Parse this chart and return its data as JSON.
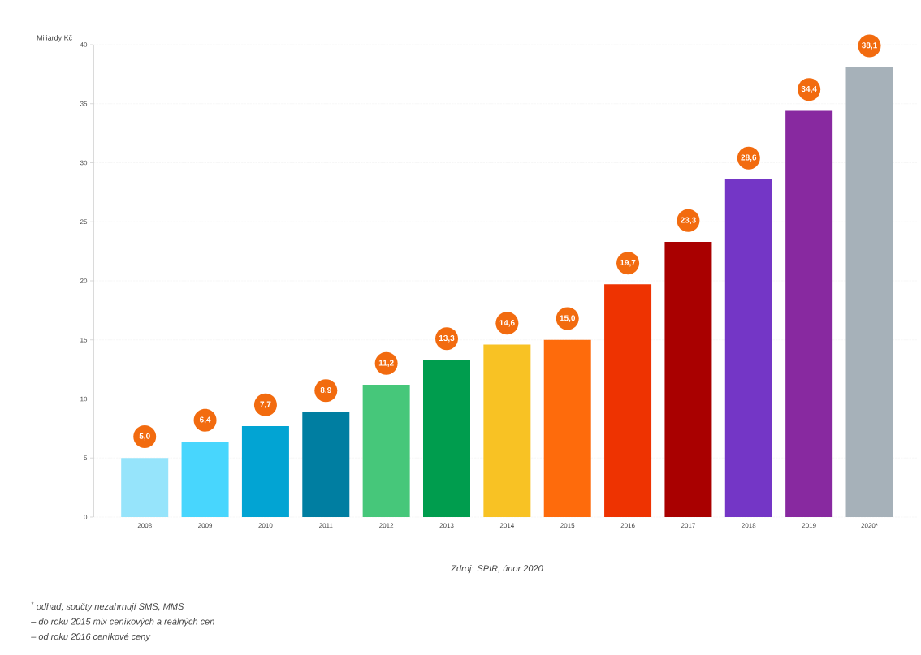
{
  "chart_data": {
    "type": "bar",
    "ylabel": "Miliardy Kč",
    "categories": [
      "2008",
      "2009",
      "2010",
      "2011",
      "2012",
      "2013",
      "2014",
      "2015",
      "2016",
      "2017",
      "2018",
      "2019",
      "2020*"
    ],
    "values": [
      5.0,
      6.4,
      7.7,
      8.9,
      11.2,
      13.3,
      14.6,
      15.0,
      19.7,
      23.3,
      28.6,
      34.4,
      38.1
    ],
    "value_labels": [
      "5,0",
      "6,4",
      "7,7",
      "8,9",
      "11,2",
      "13,3",
      "14,6",
      "15,0",
      "19,7",
      "23,3",
      "28,6",
      "34,4",
      "38,1"
    ],
    "colors": [
      "#96e4fb",
      "#48d6fd",
      "#02a4d3",
      "#007ea1",
      "#46c77a",
      "#009d4e",
      "#f8c224",
      "#fe6b0c",
      "#ee3301",
      "#a90000",
      "#7436c6",
      "#8829a0",
      "#a6b1b9"
    ],
    "ylim": [
      0,
      40
    ],
    "yticks": [
      0,
      5,
      10,
      15,
      20,
      25,
      30,
      35,
      40
    ],
    "grid": "y",
    "annotations": [
      "Zdroj: SPIR, únor 2020",
      "$^{*}$ odhad; součty nezahrnují SMS, MMS",
      "– do roku 2015 mix ceníkových a reálných cen",
      "– od roku 2016 ceníkové ceny"
    ]
  }
}
